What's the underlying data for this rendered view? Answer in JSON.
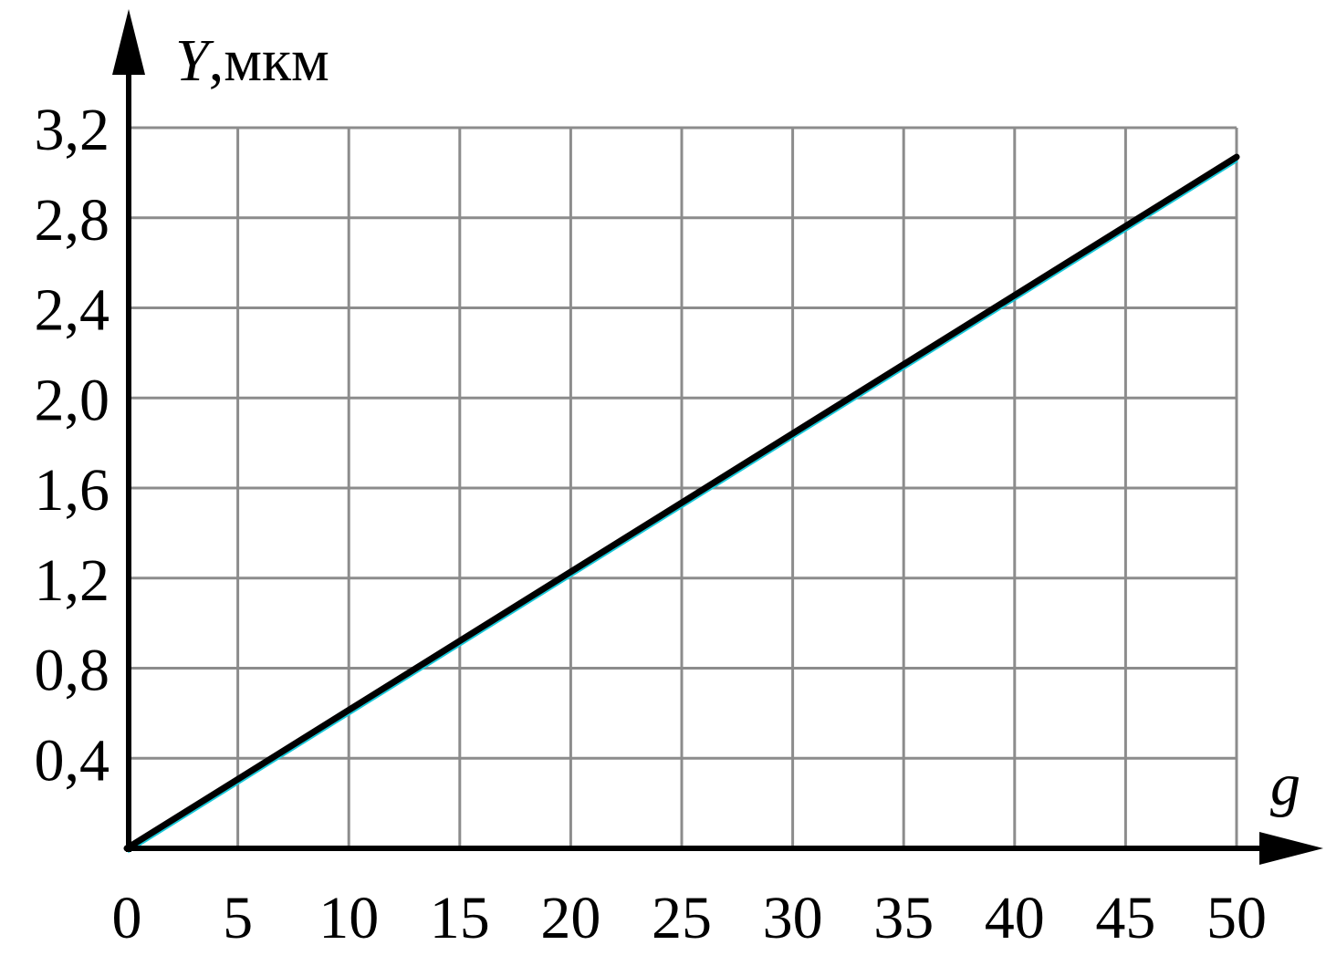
{
  "chart_data": {
    "type": "line",
    "ylabel_symbol": "Y",
    "ylabel_unit": ",мкм",
    "xlabel": "g",
    "xlim": [
      0,
      50
    ],
    "ylim": [
      0,
      3.2
    ],
    "x_ticks": [
      0,
      5,
      10,
      15,
      20,
      25,
      30,
      35,
      40,
      45,
      50
    ],
    "x_tick_labels": [
      "0",
      "5",
      "10",
      "15",
      "20",
      "25",
      "30",
      "35",
      "40",
      "45",
      "50"
    ],
    "y_ticks": [
      0.4,
      0.8,
      1.2,
      1.6,
      2.0,
      2.4,
      2.8,
      3.2
    ],
    "y_tick_labels": [
      "0,4",
      "0,8",
      "1,2",
      "1,6",
      "2,0",
      "2,4",
      "2,8",
      "3,2"
    ],
    "grid": true,
    "series": [
      {
        "x": [
          0,
          50
        ],
        "y": [
          0,
          3.07
        ]
      }
    ]
  }
}
